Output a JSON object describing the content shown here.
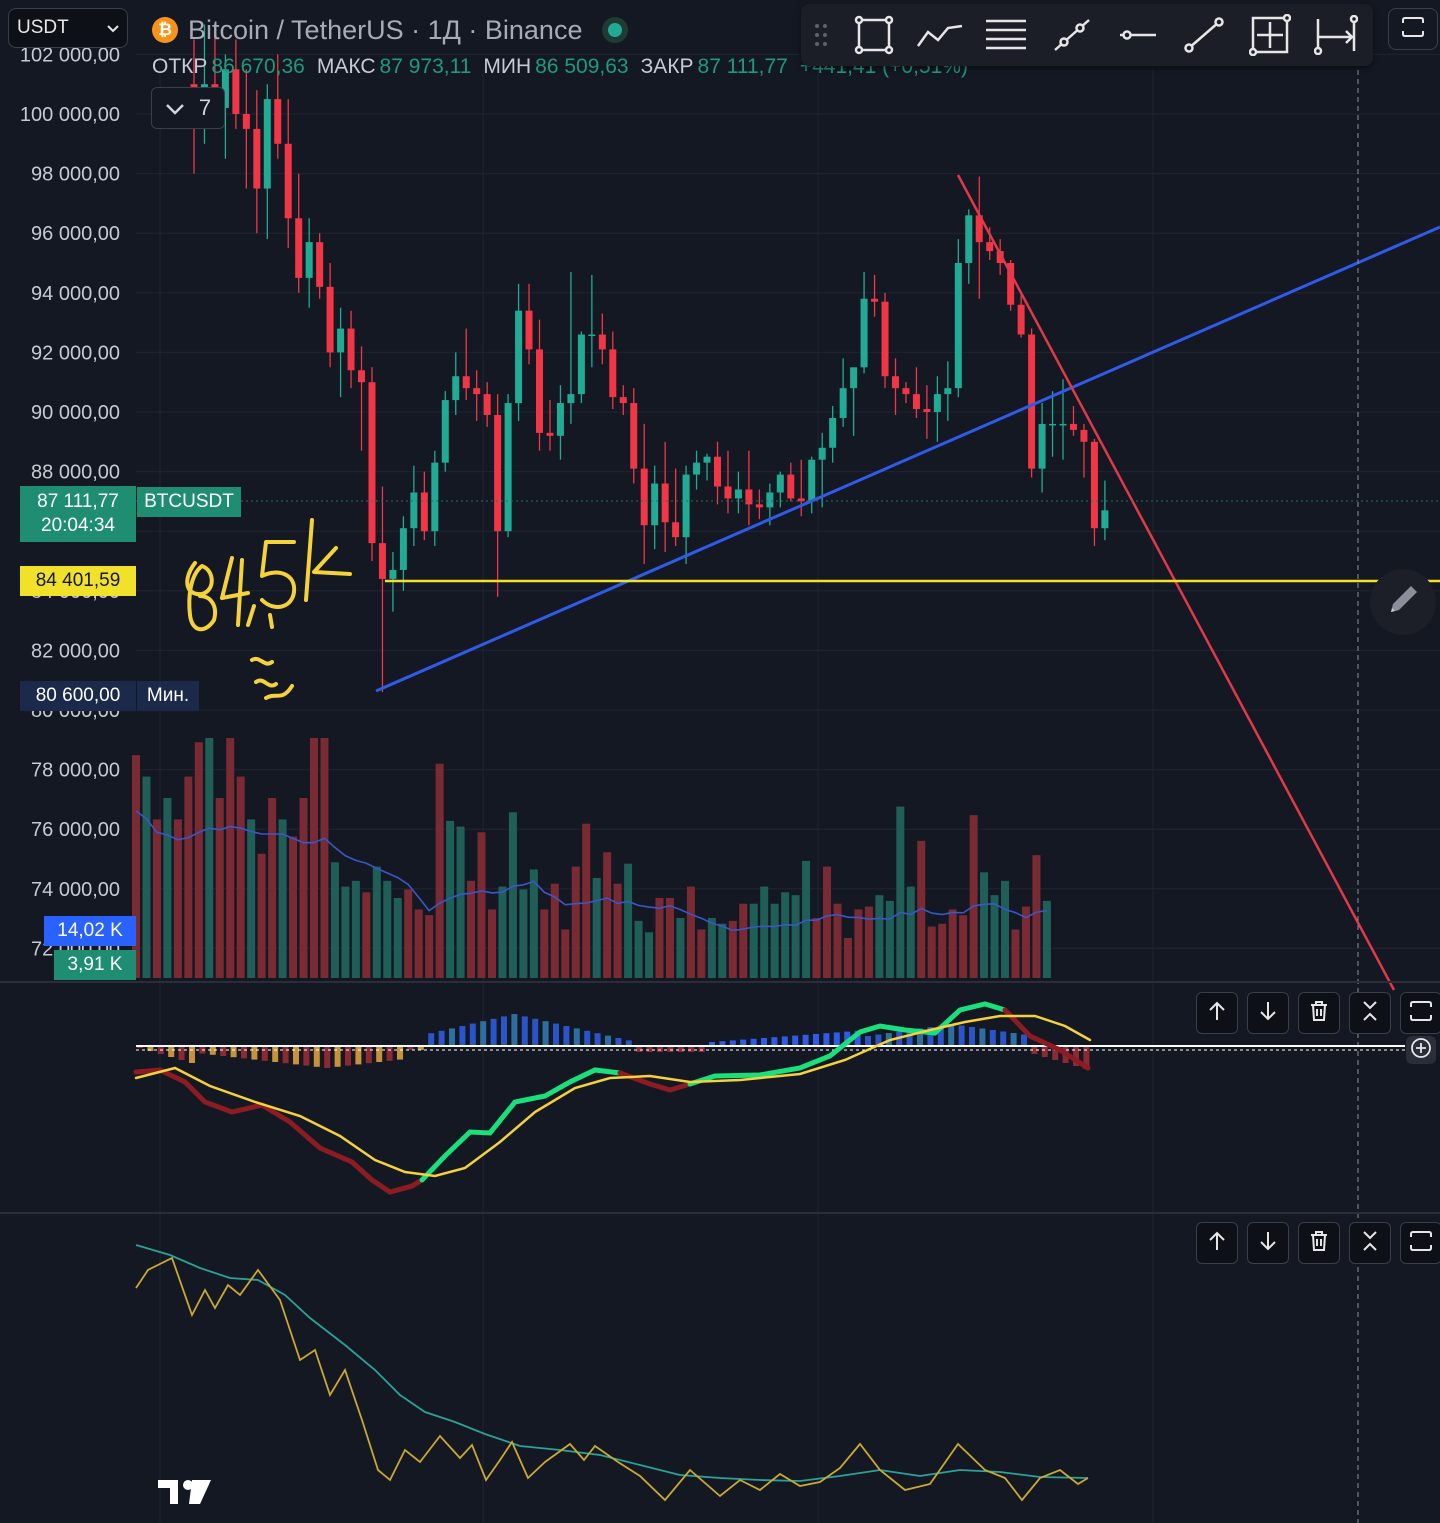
{
  "header": {
    "symbol_select": "USDT",
    "title": "Bitcoin / TetherUS · 1Д · Binance",
    "coin_icon": "bitcoin-icon",
    "ohlc": {
      "open_label": "ОТКР",
      "open_value": "86 670,36",
      "high_label": "МАКС",
      "high_value": "87 973,11",
      "low_label": "МИН",
      "low_value": "86 509,63",
      "close_label": "ЗАКР",
      "close_value": "87 111,77",
      "change_value": "+441,41 (+0,51%)"
    },
    "indicators_count": "7"
  },
  "toolbar": {
    "tools": [
      "drag-handle-icon",
      "rectangle-icon",
      "polyline-icon",
      "lines-icon",
      "trend-line-icon",
      "horizontal-ray-icon",
      "ray-icon",
      "measure-icon",
      "date-range-icon"
    ],
    "right_button": "fullscreen-icon"
  },
  "price_axis": {
    "labels": [
      "102 000,00",
      "100 000,00",
      "98 000,00",
      "96 000,00",
      "94 000,00",
      "92 000,00",
      "90 000,00",
      "88 000,00",
      "86 000,00",
      "84 000,00",
      "82 000,00",
      "80 000,00",
      "78 000,00",
      "76 000,00",
      "74 000,00",
      "72 000,00"
    ],
    "last_price": "87 111,77",
    "countdown": "20:04:34",
    "last_symbol": "BTCUSDT",
    "hline_price": "84 401,59",
    "min_price": "80 600,00",
    "min_label": "Мин.",
    "volume_ma": "14,02 K",
    "volume": "3,91 K"
  },
  "annotations": {
    "handwritten": "84,5k"
  },
  "colors": {
    "up": "#22ab94",
    "down": "#f23645",
    "volume_up": "#1f5f58",
    "volume_down": "#7a2a33",
    "trend_blue": "#2f5be8",
    "trend_red": "#e0394a",
    "hline_yellow": "#f2e12a",
    "macd_signal": "#f5d23a",
    "macd_fast": "#19e07a",
    "background": "#141823"
  },
  "chart_data": {
    "type": "candlestick",
    "title": "Bitcoin / TetherUS · 1Д · Binance",
    "ylim": [
      71000,
      103000
    ],
    "ohlc": [
      [
        101000,
        102500,
        98000,
        100500
      ],
      [
        100500,
        103000,
        99000,
        101000
      ],
      [
        101000,
        102800,
        99800,
        100200
      ],
      [
        100200,
        102000,
        98500,
        101500
      ],
      [
        101500,
        102500,
        99500,
        100000
      ],
      [
        100000,
        101500,
        97500,
        99500
      ],
      [
        99500,
        100800,
        96000,
        97500
      ],
      [
        97500,
        101000,
        95800,
        100500
      ],
      [
        100500,
        102000,
        98500,
        99000
      ],
      [
        99000,
        100500,
        95500,
        96500
      ],
      [
        96500,
        98000,
        94000,
        94500
      ],
      [
        94500,
        96500,
        93500,
        95700
      ],
      [
        95700,
        96000,
        93800,
        94200
      ],
      [
        94200,
        95000,
        91500,
        92000
      ],
      [
        92000,
        93500,
        90500,
        92800
      ],
      [
        92800,
        93400,
        90800,
        91400
      ],
      [
        91400,
        92200,
        88700,
        91000
      ],
      [
        91000,
        91500,
        85000,
        85600
      ],
      [
        85600,
        87500,
        80600,
        84400
      ],
      [
        84400,
        85300,
        83300,
        84700
      ],
      [
        84700,
        86500,
        84000,
        86100
      ],
      [
        86100,
        88200,
        85500,
        87300
      ],
      [
        87300,
        88000,
        85700,
        86000
      ],
      [
        86000,
        88700,
        85500,
        88300
      ],
      [
        88300,
        90700,
        88000,
        90400
      ],
      [
        90400,
        92000,
        89900,
        91200
      ],
      [
        91200,
        92800,
        90400,
        90800
      ],
      [
        90800,
        91400,
        89700,
        90600
      ],
      [
        90600,
        91000,
        89500,
        89900
      ],
      [
        89900,
        90600,
        83800,
        86000
      ],
      [
        86000,
        90600,
        85800,
        90300
      ],
      [
        90300,
        94300,
        89700,
        93400
      ],
      [
        93400,
        94300,
        91600,
        92100
      ],
      [
        92100,
        93100,
        88700,
        89300
      ],
      [
        89300,
        90400,
        88700,
        89200
      ],
      [
        89200,
        90900,
        88400,
        90300
      ],
      [
        90300,
        94700,
        89600,
        90600
      ],
      [
        90600,
        92700,
        90300,
        92600
      ],
      [
        92600,
        94600,
        91500,
        92600
      ],
      [
        92600,
        93300,
        91600,
        92100
      ],
      [
        92100,
        92700,
        90100,
        90500
      ],
      [
        90500,
        90900,
        89900,
        90300
      ],
      [
        90300,
        90800,
        87600,
        88100
      ],
      [
        88100,
        89600,
        84900,
        86200
      ],
      [
        86200,
        88200,
        85400,
        87600
      ],
      [
        87600,
        89000,
        85300,
        86300
      ],
      [
        86300,
        88100,
        85500,
        85800
      ],
      [
        85800,
        88200,
        84900,
        87900
      ],
      [
        87900,
        88700,
        87400,
        88300
      ],
      [
        88300,
        88600,
        87700,
        88500
      ],
      [
        88500,
        89000,
        86900,
        87500
      ],
      [
        87500,
        88700,
        86600,
        87100
      ],
      [
        87100,
        88000,
        86600,
        87400
      ],
      [
        87400,
        88700,
        86200,
        86900
      ],
      [
        86900,
        87400,
        86400,
        86800
      ],
      [
        86800,
        87600,
        86200,
        87300
      ],
      [
        87300,
        88000,
        86800,
        87900
      ],
      [
        87900,
        88300,
        87000,
        87100
      ],
      [
        87100,
        88400,
        86500,
        87000
      ],
      [
        87000,
        88500,
        86600,
        88400
      ],
      [
        88400,
        89300,
        86800,
        88800
      ],
      [
        88800,
        90200,
        88300,
        89800
      ],
      [
        89800,
        91800,
        89500,
        90800
      ],
      [
        90800,
        91400,
        89200,
        91500
      ],
      [
        91500,
        94700,
        91300,
        93800
      ],
      [
        93800,
        94600,
        93200,
        93700
      ],
      [
        93700,
        94000,
        90800,
        91200
      ],
      [
        91200,
        91800,
        89900,
        90800
      ],
      [
        90800,
        91000,
        90300,
        90600
      ],
      [
        90600,
        91500,
        89800,
        90100
      ],
      [
        90100,
        90900,
        89100,
        90000
      ],
      [
        90000,
        91200,
        89000,
        90600
      ],
      [
        90600,
        91700,
        89700,
        90800
      ],
      [
        90800,
        95800,
        90500,
        95000
      ],
      [
        95000,
        96800,
        94300,
        96600
      ],
      [
        96600,
        97900,
        93800,
        95700
      ],
      [
        95700,
        96200,
        95100,
        95400
      ],
      [
        95400,
        95800,
        94600,
        95000
      ],
      [
        95000,
        95100,
        93400,
        93600
      ],
      [
        93600,
        94000,
        92500,
        92600
      ],
      [
        92600,
        92800,
        87800,
        88100
      ],
      [
        88100,
        90300,
        87300,
        89600
      ],
      [
        89600,
        90700,
        88500,
        89600
      ],
      [
        89600,
        91100,
        88400,
        89600
      ],
      [
        89600,
        90200,
        89200,
        89400
      ],
      [
        89400,
        89600,
        87800,
        89000
      ],
      [
        89000,
        89100,
        85500,
        86100
      ],
      [
        86100,
        87700,
        85700,
        86700
      ]
    ],
    "volume_ma_last": "14,02 K",
    "volume_last": "3,91 K"
  }
}
